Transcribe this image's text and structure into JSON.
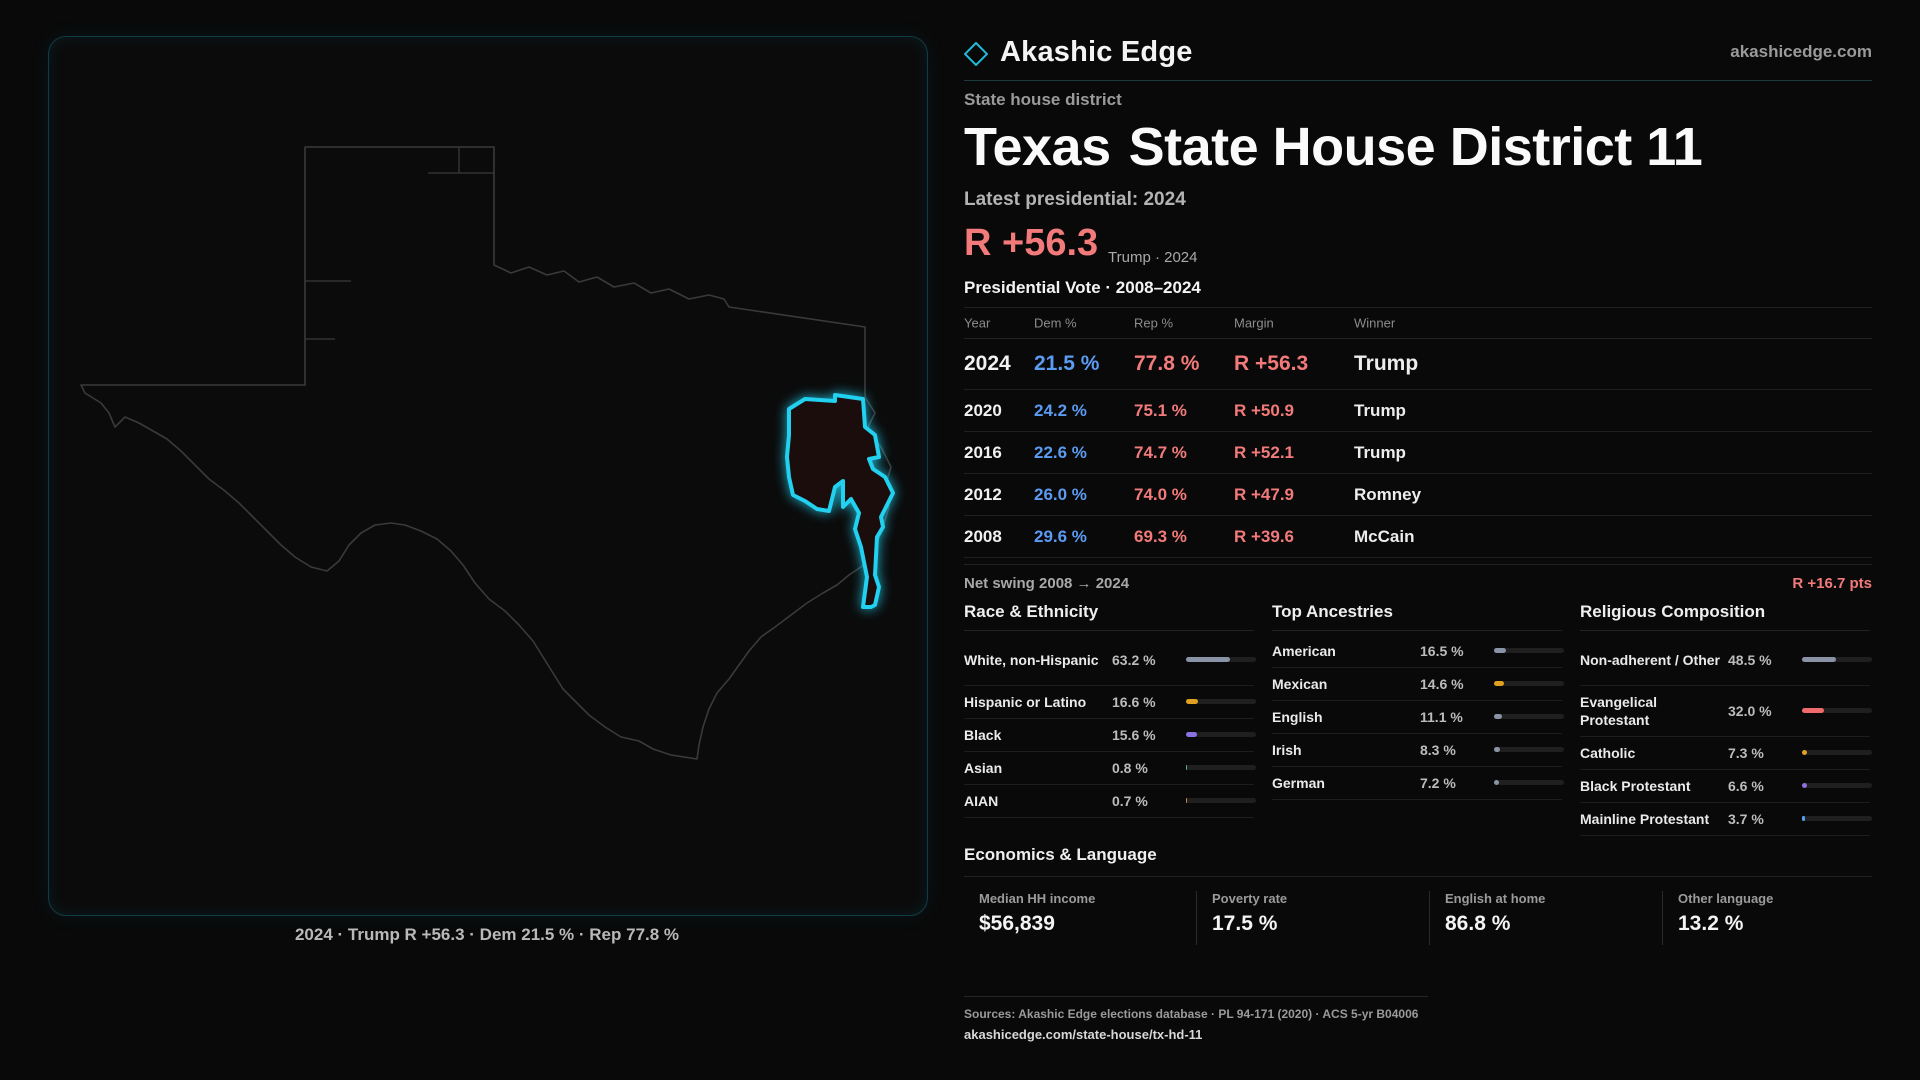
{
  "brand": {
    "name": "Akashic Edge",
    "site": "akashicedge.com"
  },
  "district": {
    "kind": "State house district",
    "state": "Texas",
    "name": "State House District 11",
    "latest_label": "Latest presidential: 2024",
    "margin": "R +56.3",
    "margin_sub": "Trump · 2024"
  },
  "map": {
    "caption": "2024 · Trump R +56.3 · Dem 21.5 % · Rep 77.8 %",
    "highlight_color": "#22d0f0",
    "state_outline_color": "#3a3a3a"
  },
  "vote_table": {
    "title": "Presidential Vote · 2008–2024",
    "headers": [
      "Year",
      "Dem %",
      "Rep %",
      "Margin",
      "Winner"
    ],
    "rows": [
      {
        "year": "2024",
        "dem": "21.5 %",
        "rep": "77.8 %",
        "margin": "R +56.3",
        "winner": "Trump"
      },
      {
        "year": "2020",
        "dem": "24.2 %",
        "rep": "75.1 %",
        "margin": "R +50.9",
        "winner": "Trump"
      },
      {
        "year": "2016",
        "dem": "22.6 %",
        "rep": "74.7 %",
        "margin": "R +52.1",
        "winner": "Trump"
      },
      {
        "year": "2012",
        "dem": "26.0 %",
        "rep": "74.0 %",
        "margin": "R +47.9",
        "winner": "Romney"
      },
      {
        "year": "2008",
        "dem": "29.6 %",
        "rep": "69.3 %",
        "margin": "R +39.6",
        "winner": "McCain"
      }
    ]
  },
  "swing": {
    "label": "Net swing 2008 → 2024",
    "value": "R +16.7 pts"
  },
  "race": {
    "title": "Race & Ethnicity",
    "items": [
      {
        "label": "White, non-Hispanic",
        "pct": "63.2 %",
        "value": 63.2,
        "color": "#8a93a6"
      },
      {
        "label": "Hispanic or Latino",
        "pct": "16.6 %",
        "value": 16.6,
        "color": "#e0a020"
      },
      {
        "label": "Black",
        "pct": "15.6 %",
        "value": 15.6,
        "color": "#8c72e0"
      },
      {
        "label": "Asian",
        "pct": "0.8 %",
        "value": 0.8,
        "color": "#3fb58a"
      },
      {
        "label": "AIAN",
        "pct": "0.7 %",
        "value": 0.7,
        "color": "#c7843c"
      }
    ]
  },
  "ancestry": {
    "title": "Top Ancestries",
    "items": [
      {
        "label": "American",
        "pct": "16.5 %",
        "value": 16.5,
        "color": "#8a93a6"
      },
      {
        "label": "Mexican",
        "pct": "14.6 %",
        "value": 14.6,
        "color": "#e0a020"
      },
      {
        "label": "English",
        "pct": "11.1 %",
        "value": 11.1,
        "color": "#8a93a6"
      },
      {
        "label": "Irish",
        "pct": "8.3 %",
        "value": 8.3,
        "color": "#8a93a6"
      },
      {
        "label": "German",
        "pct": "7.2 %",
        "value": 7.2,
        "color": "#8a93a6"
      }
    ]
  },
  "religion": {
    "title": "Religious Composition",
    "items": [
      {
        "label": "Non-adherent / Other",
        "pct": "48.5 %",
        "value": 48.5,
        "color": "#8a93a6"
      },
      {
        "label": "Evangelical Protestant",
        "pct": "32.0 %",
        "value": 32.0,
        "color": "#f06b6b"
      },
      {
        "label": "Catholic",
        "pct": "7.3 %",
        "value": 7.3,
        "color": "#e0a020"
      },
      {
        "label": "Black Protestant",
        "pct": "6.6 %",
        "value": 6.6,
        "color": "#8c72e0"
      },
      {
        "label": "Mainline Protestant",
        "pct": "3.7 %",
        "value": 3.7,
        "color": "#5b9bf2"
      }
    ]
  },
  "economics": {
    "title": "Economics & Language",
    "items": [
      {
        "label": "Median HH income",
        "value": "$56,839"
      },
      {
        "label": "Poverty rate",
        "value": "17.5 %"
      },
      {
        "label": "English at home",
        "value": "86.8 %"
      },
      {
        "label": "Other language",
        "value": "13.2 %"
      }
    ]
  },
  "sources": {
    "text": "Sources: Akashic Edge elections database · PL 94-171 (2020) · ACS 5-yr B04006",
    "url": "akashicedge.com/state-house/tx-hd-11"
  }
}
